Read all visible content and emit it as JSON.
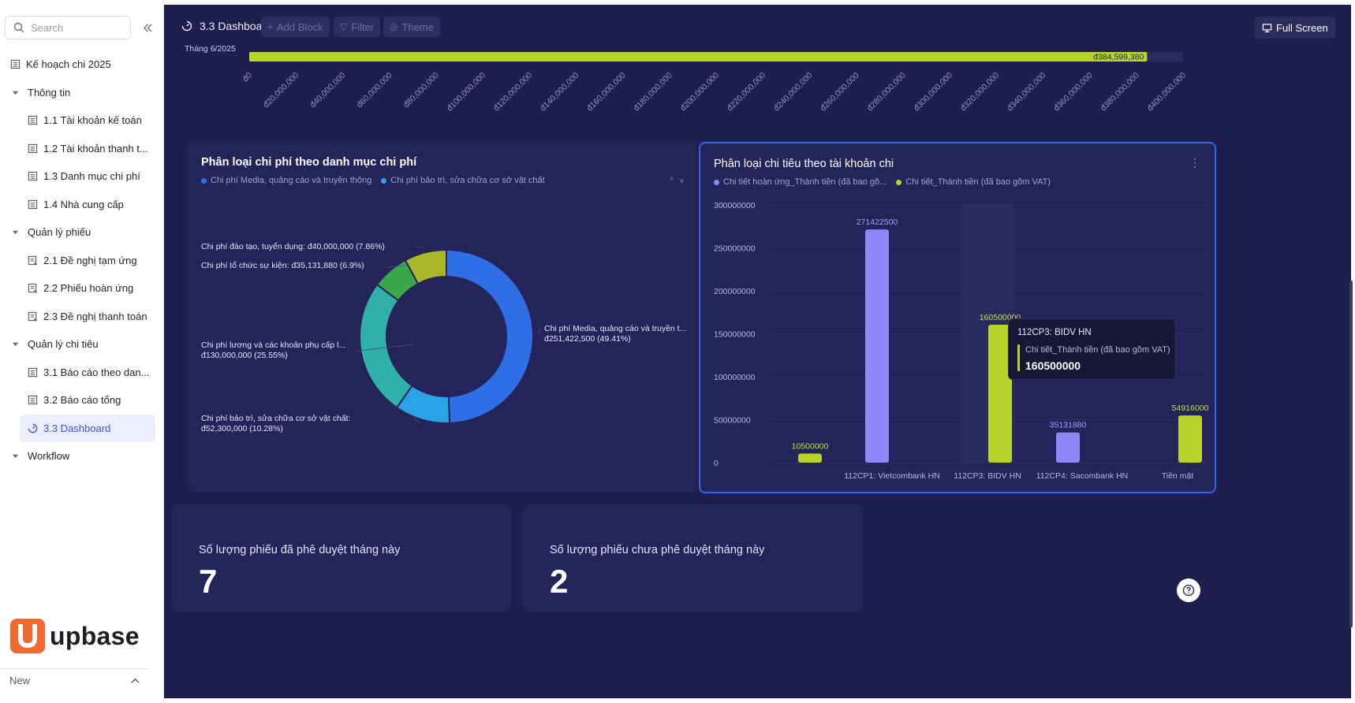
{
  "sidebar": {
    "search_placeholder": "Search",
    "items": [
      {
        "label": "Kế hoạch chi 2025",
        "icon": "table-icon",
        "level": 0
      },
      {
        "label": "Thông tin",
        "icon": "caret-down-icon",
        "level": "group"
      },
      {
        "label": "1.1 Tài khoản kế toán",
        "icon": "table-icon",
        "level": 1
      },
      {
        "label": "1.2 Tài khoản thanh t...",
        "icon": "table-icon",
        "level": 1
      },
      {
        "label": "1.3 Danh mục chi phí",
        "icon": "table-icon",
        "level": 1
      },
      {
        "label": "1.4 Nhà cung cấp",
        "icon": "table-icon",
        "level": 1
      },
      {
        "label": "Quản lý phiếu",
        "icon": "caret-down-icon",
        "level": "group"
      },
      {
        "label": "2.1 Đề nghị tạm ứng",
        "icon": "form-icon",
        "level": 1
      },
      {
        "label": "2.2 Phiếu hoàn ứng",
        "icon": "form-icon",
        "level": 1
      },
      {
        "label": "2.3 Đề nghị thanh toán",
        "icon": "form-icon",
        "level": 1
      },
      {
        "label": "Quản lý chi tiêu",
        "icon": "caret-down-icon",
        "level": "group"
      },
      {
        "label": "3.1 Báo cáo theo dan...",
        "icon": "table-icon",
        "level": 1
      },
      {
        "label": "3.2 Báo cáo tổng",
        "icon": "table-icon",
        "level": 1
      },
      {
        "label": "3.3 Dashboard",
        "icon": "dashboard-icon",
        "level": 1,
        "active": true
      },
      {
        "label": "Workflow",
        "icon": "caret-down-icon",
        "level": "group"
      }
    ],
    "logo_text": "upbase",
    "bottom_label": "New",
    "accent_color": "#3c53e0",
    "logo_color": "#f26a2e"
  },
  "header": {
    "title": "3.3 Dashboard",
    "add_block_label": "Add Block",
    "filter_label": "Filter",
    "theme_label": "Theme",
    "fullscreen_label": "Full Screen"
  },
  "budget_chart": {
    "chart_data": {
      "type": "bar",
      "orientation": "horizontal",
      "categories": [
        "Tháng 6/2025"
      ],
      "values": [
        384599380
      ],
      "value_label": "đ384,599,380",
      "xlim": [
        0,
        400000000
      ],
      "x_ticks": [
        "đ0",
        "đ20,000,000",
        "đ40,000,000",
        "đ60,000,000",
        "đ80,000,000",
        "đ100,000,000",
        "đ120,000,000",
        "đ140,000,000",
        "đ160,000,000",
        "đ180,000,000",
        "đ200,000,000",
        "đ220,000,000",
        "đ240,000,000",
        "đ260,000,000",
        "đ280,000,000",
        "đ300,000,000",
        "đ320,000,000",
        "đ340,000,000",
        "đ360,000,000",
        "đ380,000,000",
        "đ400,000,000"
      ],
      "color": "#b8d32a"
    }
  },
  "category_chart": {
    "title": "Phân loại chi phí theo danh mục chi phí",
    "legend": [
      {
        "name": "Chi phí Media, quảng cáo và truyền thông",
        "color": "#2f6fe6"
      },
      {
        "name": "Chi phí bảo trì, sửa chữa cơ sở vật chất",
        "color": "#2aa3e6"
      }
    ],
    "pager": [
      "^",
      "v"
    ],
    "chart_data": {
      "type": "pie",
      "donut": true,
      "slices": [
        {
          "name": "Chi phí Media, quảng cáo và truyền thông",
          "value": 251422500,
          "percent": 49.41,
          "color": "#2f6fe6",
          "label": [
            "Chi phí Media, quảng cáo và truyền t...",
            "đ251,422,500 (49.41%)"
          ]
        },
        {
          "name": "Chi phí bảo trì, sửa chữa cơ sở vật chất",
          "value": 52300000,
          "percent": 10.28,
          "color": "#2aa3e6",
          "label": [
            "Chi phí bảo trì, sửa chữa cơ sở vật chất:",
            "đ52,300,000 (10.28%)"
          ]
        },
        {
          "name": "Chi phí lương và các khoản phụ cấp",
          "value": 130000000,
          "percent": 25.55,
          "color": "#2fb0a8",
          "label": [
            "Chi phí lương và các khoản phụ cấp l...",
            "đ130,000,000 (25.55%)"
          ]
        },
        {
          "name": "Chi phí tổ chức sự kiện",
          "value": 35131880,
          "percent": 6.9,
          "color": "#3aa84a",
          "label": [
            "Chi phí tổ chức sự kiện: đ35,131,880 (6.9%)"
          ]
        },
        {
          "name": "Chi phí đào tạo, tuyển dụng",
          "value": 40000000,
          "percent": 7.86,
          "color": "#a8b82a",
          "label": [
            "Chi phí đào tạo, tuyển dụng: đ40,000,000 (7.86%)"
          ]
        }
      ]
    }
  },
  "account_chart": {
    "title": "Phân loại chi tiêu theo tài khoản chi",
    "menu_glyph": "⋮",
    "legend": [
      {
        "name": "Chi tiết hoàn ứng_Thành tiền (đã bao gồ...",
        "color": "#8f87f5"
      },
      {
        "name": "Chi tiết_Thành tiền (đã bao gồm VAT)",
        "color": "#b8d32a"
      }
    ],
    "chart_data": {
      "type": "bar",
      "categories": [
        "112CP1: Vietcombank HN",
        "112CP3: BIDV HN",
        "112CP4: Sacombank HN",
        "Tiền mặt"
      ],
      "x_labels_shown": [
        "112CP1: Vietcombank HN",
        "112CP3: BIDV HN",
        "112CP4: Sacombank HN",
        "Tiền mặt"
      ],
      "bars": [
        {
          "series": "Chi tiết_Thành tiền (đã bao gồm VAT)",
          "value": 10500000,
          "label": "10500000",
          "color": "#b8d32a"
        },
        {
          "series": "Chi tiết hoàn ứng_Thành tiền (đã bao gồ...",
          "value": 271422500,
          "label": "271422500",
          "color": "#8f87f5"
        },
        {
          "series": "Chi tiết_Thành tiền (đã bao gồm VAT)",
          "value": 160500000,
          "label": "160500000",
          "color": "#b8d32a"
        },
        {
          "series": "Chi tiết hoàn ứng_Thành tiền (đã bao gồ...",
          "value": 35131880,
          "label": "35131880",
          "color": "#8f87f5"
        },
        {
          "series": "Chi tiết_Thành tiền (đã bao gồm VAT)",
          "value": 54916000,
          "label": "54916000",
          "color": "#b8d32a"
        }
      ],
      "ylim": [
        0,
        300000000
      ],
      "y_ticks": [
        "0",
        "50000000",
        "100000000",
        "150000000",
        "200000000",
        "250000000",
        "300000000"
      ]
    },
    "tooltip": {
      "title": "112CP3: BIDV HN",
      "series": "Chi tiết_Thành tiền (đã bao gồm VAT)",
      "value": "160500000"
    }
  },
  "kpis": [
    {
      "label": "Số lượng phiếu đã phê duyệt tháng này",
      "value": "7"
    },
    {
      "label": "Số lượng phiếu chưa phê duyệt tháng này",
      "value": "2"
    }
  ],
  "colors": {
    "background": "#1e1f4e",
    "panel": "#23245a",
    "lime": "#b8d32a",
    "violet": "#8f87f5"
  }
}
